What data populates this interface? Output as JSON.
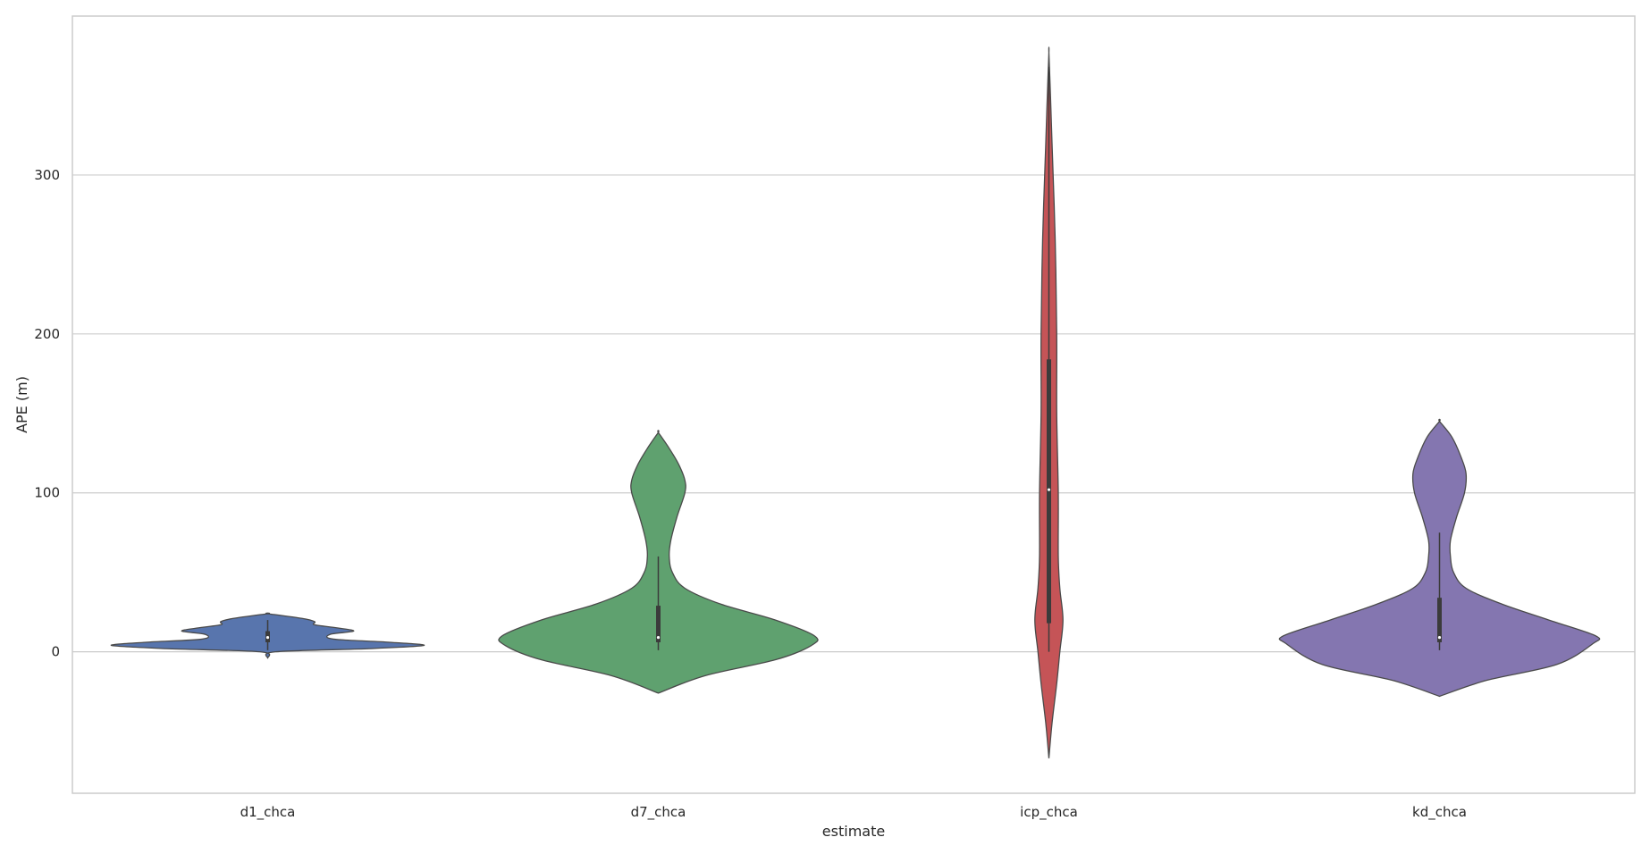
{
  "chart_data": {
    "type": "violin",
    "title": "",
    "xlabel": "estimate",
    "ylabel": "APE (m)",
    "ylim": [
      -89,
      400
    ],
    "yticks": [
      0,
      100,
      200,
      300
    ],
    "grid": true,
    "colors": {
      "grid": "#cccccc",
      "frame": "#cccccc",
      "inner": "#3b3b3b",
      "outline": "#4a4a4a"
    },
    "categories": [
      "d1_chca",
      "d7_chca",
      "icp_chca",
      "kd_chca"
    ],
    "series": [
      {
        "category": "d1_chca",
        "color": "#5875ad",
        "range": [
          -4,
          24
        ],
        "box": {
          "q1": 6,
          "median": 9,
          "q3": 13,
          "whisker_low": 1,
          "whisker_high": 20
        },
        "density": [
          [
            -4,
            0.0
          ],
          [
            0,
            0.05
          ],
          [
            2,
            0.65
          ],
          [
            4,
            1.0
          ],
          [
            6,
            0.78
          ],
          [
            8,
            0.42
          ],
          [
            11,
            0.4
          ],
          [
            13,
            0.55
          ],
          [
            15,
            0.45
          ],
          [
            17,
            0.3
          ],
          [
            19,
            0.3
          ],
          [
            21,
            0.22
          ],
          [
            24,
            0.0
          ]
        ]
      },
      {
        "category": "d7_chca",
        "color": "#5fa16f",
        "range": [
          -26,
          138
        ],
        "box": {
          "q1": 6,
          "median": 9,
          "q3": 29,
          "whisker_low": 1,
          "whisker_high": 60
        },
        "density": [
          [
            -26,
            0.0
          ],
          [
            -15,
            0.3
          ],
          [
            -5,
            0.75
          ],
          [
            4,
            0.98
          ],
          [
            10,
            1.0
          ],
          [
            20,
            0.75
          ],
          [
            30,
            0.4
          ],
          [
            40,
            0.17
          ],
          [
            50,
            0.09
          ],
          [
            60,
            0.07
          ],
          [
            70,
            0.08
          ],
          [
            85,
            0.12
          ],
          [
            100,
            0.17
          ],
          [
            108,
            0.17
          ],
          [
            118,
            0.13
          ],
          [
            128,
            0.07
          ],
          [
            138,
            0.0
          ]
        ]
      },
      {
        "category": "icp_chca",
        "color": "#c55457",
        "range": [
          -67,
          377
        ],
        "box": {
          "q1": 18,
          "median": 102,
          "q3": 184,
          "whisker_low": 0,
          "whisker_high": 368
        },
        "density": [
          [
            -67,
            0.0
          ],
          [
            -45,
            0.02
          ],
          [
            -20,
            0.05
          ],
          [
            0,
            0.07
          ],
          [
            20,
            0.09
          ],
          [
            40,
            0.07
          ],
          [
            60,
            0.06
          ],
          [
            100,
            0.06
          ],
          [
            150,
            0.05
          ],
          [
            200,
            0.05
          ],
          [
            260,
            0.04
          ],
          [
            320,
            0.02
          ],
          [
            350,
            0.01
          ],
          [
            377,
            0.0
          ]
        ]
      },
      {
        "category": "kd_chca",
        "color": "#8476b0",
        "range": [
          -28,
          145
        ],
        "box": {
          "q1": 6,
          "median": 9,
          "q3": 34,
          "whisker_low": 1,
          "whisker_high": 75
        },
        "density": [
          [
            -28,
            0.0
          ],
          [
            -18,
            0.3
          ],
          [
            -8,
            0.75
          ],
          [
            5,
            0.98
          ],
          [
            10,
            1.0
          ],
          [
            20,
            0.7
          ],
          [
            30,
            0.4
          ],
          [
            40,
            0.17
          ],
          [
            50,
            0.09
          ],
          [
            60,
            0.07
          ],
          [
            70,
            0.07
          ],
          [
            85,
            0.11
          ],
          [
            100,
            0.16
          ],
          [
            112,
            0.17
          ],
          [
            122,
            0.14
          ],
          [
            135,
            0.08
          ],
          [
            145,
            0.0
          ]
        ]
      }
    ]
  }
}
